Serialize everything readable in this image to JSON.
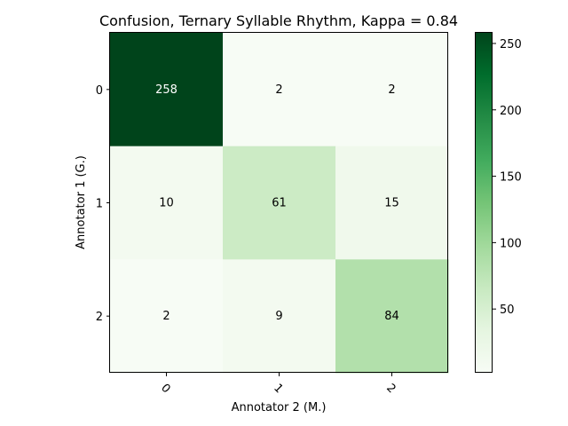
{
  "chart_data": {
    "type": "heatmap",
    "title": "Confusion, Ternary Syllable Rhythm, Kappa = 0.84",
    "xlabel": "Annotator 2 (M.)",
    "ylabel": "Annotator 1 (G.)",
    "x_categories": [
      "0",
      "1",
      "2"
    ],
    "y_categories": [
      "0",
      "1",
      "2"
    ],
    "values": [
      [
        258,
        2,
        2
      ],
      [
        10,
        61,
        15
      ],
      [
        2,
        9,
        84
      ]
    ],
    "colormap": "Greens",
    "colorbar": {
      "range": [
        2,
        258
      ],
      "ticks": [
        50,
        100,
        150,
        200,
        250
      ],
      "tick_labels": [
        "50",
        "100",
        "150",
        "200",
        "250"
      ]
    },
    "grid": false
  }
}
